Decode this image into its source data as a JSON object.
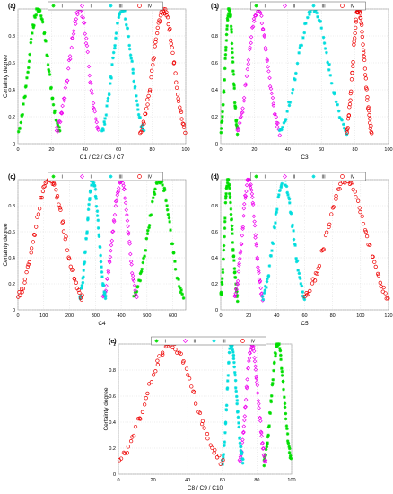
{
  "chart_data": [
    {
      "panel_label": "(a)",
      "type": "scatter",
      "xlabel": "C1 / C2 / C6 / C7",
      "ylabel": "Certainty degree",
      "xlim": [
        0,
        100
      ],
      "ylim": [
        0,
        1
      ],
      "xticks": [
        0,
        20,
        40,
        60,
        80,
        100
      ],
      "yticks": [
        0,
        0.2,
        0.4,
        0.6,
        0.8,
        1
      ],
      "legend": [
        "I",
        "II",
        "III",
        "IV"
      ],
      "legend_position": "top-center",
      "series": [
        {
          "name": "I",
          "marker": "asterisk",
          "color": "#00dd00",
          "center": 12,
          "range": [
            0,
            25
          ]
        },
        {
          "name": "II",
          "marker": "diamond",
          "color": "#ee00ee",
          "center": 37,
          "range": [
            23,
            48
          ]
        },
        {
          "name": "III",
          "marker": "asterisk",
          "color": "#00dddd",
          "center": 62,
          "range": [
            50,
            75
          ]
        },
        {
          "name": "IV",
          "marker": "circle",
          "color": "#ee0000",
          "center": 87,
          "range": [
            73,
            100
          ]
        }
      ]
    },
    {
      "panel_label": "(b)",
      "type": "scatter",
      "xlabel": "C3",
      "ylabel": "",
      "xlim": [
        0,
        100
      ],
      "ylim": [
        0,
        1
      ],
      "xticks": [
        0,
        20,
        40,
        60,
        80,
        100
      ],
      "yticks": [
        0,
        0.2,
        0.4,
        0.6,
        0.8,
        1
      ],
      "legend": [
        "I",
        "II",
        "III",
        "IV"
      ],
      "legend_position": "top-center",
      "series": [
        {
          "name": "I",
          "marker": "asterisk",
          "color": "#00dd00",
          "center": 5,
          "range": [
            0,
            10
          ]
        },
        {
          "name": "II",
          "marker": "diamond",
          "color": "#ee00ee",
          "center": 22,
          "range": [
            10,
            35
          ]
        },
        {
          "name": "III",
          "marker": "asterisk",
          "color": "#00dddd",
          "center": 55,
          "range": [
            35,
            75
          ]
        },
        {
          "name": "IV",
          "marker": "circle",
          "color": "#ee0000",
          "center": 82,
          "range": [
            75,
            90
          ]
        }
      ]
    },
    {
      "panel_label": "(c)",
      "type": "scatter",
      "xlabel": "C4",
      "ylabel": "Certainty degree",
      "xlim": [
        0,
        650
      ],
      "ylim": [
        0,
        1
      ],
      "xticks": [
        0,
        100,
        200,
        300,
        400,
        500,
        600
      ],
      "yticks": [
        0,
        0.2,
        0.4,
        0.6,
        0.8,
        1
      ],
      "legend": [
        "I",
        "II",
        "III",
        "IV"
      ],
      "legend_position": "top-center",
      "series": [
        {
          "name": "I",
          "marker": "asterisk",
          "color": "#00dd00",
          "center": 550,
          "range": [
            450,
            640
          ]
        },
        {
          "name": "II",
          "marker": "diamond",
          "color": "#ee00ee",
          "center": 400,
          "range": [
            330,
            460
          ]
        },
        {
          "name": "III",
          "marker": "asterisk",
          "color": "#00dddd",
          "center": 290,
          "range": [
            240,
            340
          ]
        },
        {
          "name": "IV",
          "marker": "circle",
          "color": "#ee0000",
          "center": 120,
          "range": [
            0,
            250
          ]
        }
      ]
    },
    {
      "panel_label": "(d)",
      "type": "scatter",
      "xlabel": "C5",
      "ylabel": "",
      "xlim": [
        0,
        120
      ],
      "ylim": [
        0,
        1
      ],
      "xticks": [
        0,
        20,
        40,
        60,
        80,
        100,
        120
      ],
      "yticks": [
        0,
        0.2,
        0.4,
        0.6,
        0.8,
        1
      ],
      "legend": [
        "I",
        "II",
        "III",
        "IV"
      ],
      "legend_position": "top-center",
      "series": [
        {
          "name": "I",
          "marker": "asterisk",
          "color": "#00dd00",
          "center": 5,
          "range": [
            0,
            12
          ]
        },
        {
          "name": "II",
          "marker": "diamond",
          "color": "#ee00ee",
          "center": 20,
          "range": [
            10,
            30
          ]
        },
        {
          "name": "III",
          "marker": "asterisk",
          "color": "#00dddd",
          "center": 45,
          "range": [
            30,
            60
          ]
        },
        {
          "name": "IV",
          "marker": "circle",
          "color": "#ee0000",
          "center": 90,
          "range": [
            60,
            120
          ]
        }
      ]
    },
    {
      "panel_label": "(e)",
      "type": "scatter",
      "xlabel": "C8 / C9 / C10",
      "ylabel": "Certainty degree",
      "xlim": [
        0,
        100
      ],
      "ylim": [
        0,
        1
      ],
      "xticks": [
        0,
        20,
        40,
        60,
        80,
        100
      ],
      "yticks": [
        0,
        0.2,
        0.4,
        0.6,
        0.8,
        1
      ],
      "legend": [
        "I",
        "II",
        "III",
        "IV"
      ],
      "legend_position": "top-center",
      "series": [
        {
          "name": "I",
          "marker": "asterisk",
          "color": "#00dd00",
          "center": 92,
          "range": [
            84,
            100
          ]
        },
        {
          "name": "II",
          "marker": "diamond",
          "color": "#ee00ee",
          "center": 77,
          "range": [
            70,
            85
          ]
        },
        {
          "name": "III",
          "marker": "asterisk",
          "color": "#00dddd",
          "center": 65,
          "range": [
            60,
            72
          ]
        },
        {
          "name": "IV",
          "marker": "circle",
          "color": "#ee0000",
          "center": 30,
          "range": [
            0,
            60
          ]
        }
      ]
    }
  ]
}
